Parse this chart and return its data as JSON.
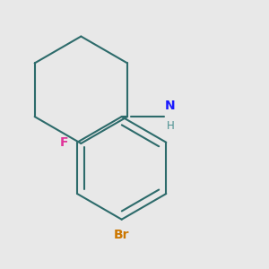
{
  "background_color": "#e8e8e8",
  "bond_color": "#2d6b6b",
  "F_color": "#e0359a",
  "Br_color": "#cc7700",
  "N_color": "#1a1aff",
  "H_color": "#4a9090",
  "NH_text": "N",
  "H_text": "H",
  "F_text": "F",
  "Br_text": "Br",
  "line_width": 1.5,
  "figsize": [
    3.0,
    3.0
  ],
  "dpi": 100
}
